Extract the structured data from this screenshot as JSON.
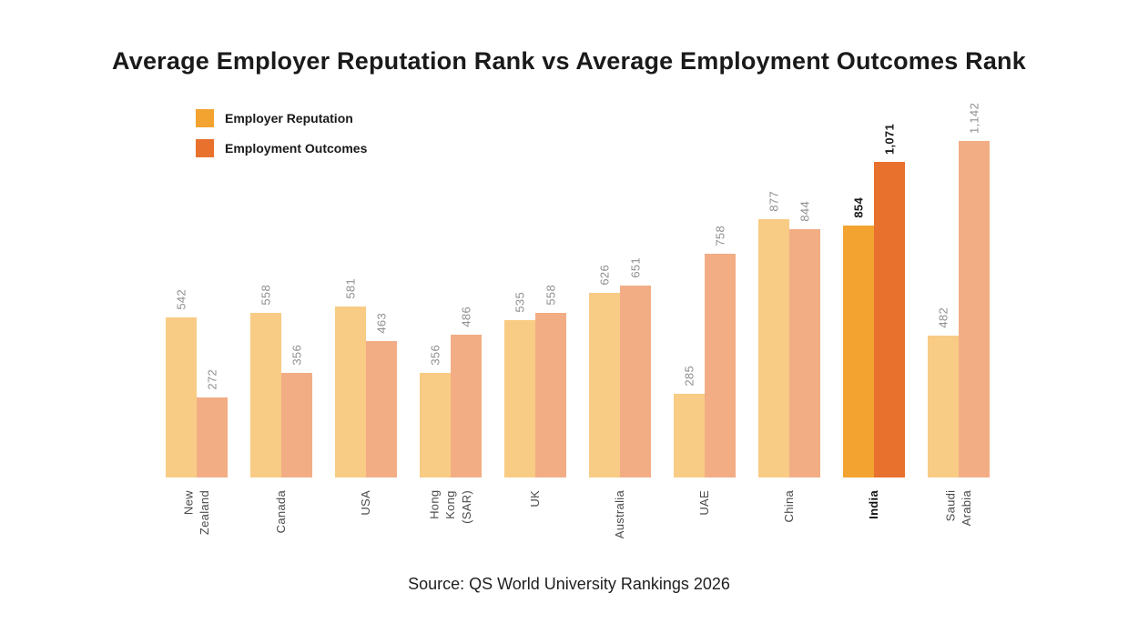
{
  "title": "Average Employer Reputation Rank vs Average Employment Outcomes Rank",
  "source": "Source: QS World University Rankings 2026",
  "legend": [
    {
      "label": "Employer Reputation",
      "color": "#F2A330"
    },
    {
      "label": "Employment Outcomes",
      "color": "#E8712D"
    }
  ],
  "colors": {
    "employer_reputation_highlight": "#F2A330",
    "employer_reputation_muted": "#F8CC85",
    "employment_outcomes_highlight": "#E8712D",
    "employment_outcomes_muted": "#F2AD85",
    "value_label_gray": "#8F8F8F",
    "value_label_highlight": "#1A1A1A"
  },
  "chart_data": {
    "type": "bar",
    "title": "Average Employer Reputation Rank vs Average Employment Outcomes Rank",
    "categories": [
      "New\nZealand",
      "Canada",
      "USA",
      "Hong\nKong\n(SAR)",
      "UK",
      "Australia",
      "UAE",
      "China",
      "India",
      "Saudi\nArabia"
    ],
    "series": [
      {
        "name": "Employer Reputation",
        "values": [
          542,
          558,
          581,
          356,
          535,
          626,
          285,
          877,
          854,
          482
        ]
      },
      {
        "name": "Employment Outcomes",
        "values": [
          272,
          356,
          463,
          486,
          558,
          651,
          758,
          844,
          1071,
          1142
        ]
      }
    ],
    "highlight_category": "India",
    "highlight_index": 8,
    "ylim": [
      0,
      1142
    ],
    "grid": false,
    "legend_position": "top-left",
    "value_labels": "rotated",
    "source": "Source: QS World University Rankings 2026"
  }
}
